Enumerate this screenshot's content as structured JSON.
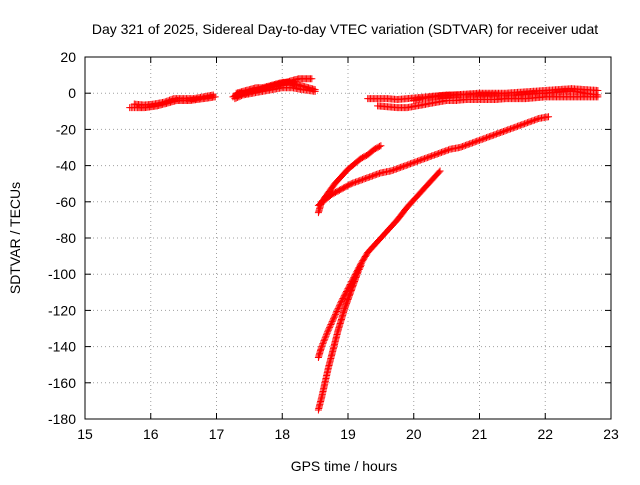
{
  "chart_data": {
    "type": "scatter",
    "title": "Day 321 of 2025, Sidereal Day-to-day VTEC variation (SDTVAR) for receiver udat",
    "xlabel": "GPS time / hours",
    "ylabel": "SDTVAR / TECUs",
    "xlim": [
      15,
      23
    ],
    "ylim": [
      -180,
      20
    ],
    "x_ticks": [
      15,
      16,
      17,
      18,
      19,
      20,
      21,
      22,
      23
    ],
    "y_ticks": [
      20,
      0,
      -20,
      -40,
      -60,
      -80,
      -100,
      -120,
      -140,
      -160,
      -180
    ],
    "x_tick_labels": [
      "15",
      "16",
      "17",
      "18",
      "19",
      "20",
      "21",
      "22",
      "23"
    ],
    "y_tick_labels": [
      "20",
      "0",
      "-20",
      "-40",
      "-60",
      "-80",
      "-100",
      "-120",
      "-140",
      "-160",
      "-180"
    ],
    "grid": true,
    "legend": "none",
    "marker": "plus",
    "color": "#ff0000",
    "series": [
      {
        "x": [
          15.68,
          15.8,
          15.9,
          16.0,
          16.1,
          16.2,
          16.3,
          16.4,
          16.5,
          16.6,
          16.7,
          16.8,
          16.9,
          16.98
        ],
        "y": [
          -8,
          -8,
          -8,
          -7.5,
          -7,
          -6,
          -5,
          -4,
          -4,
          -4,
          -3.5,
          -3,
          -2.5,
          -2
        ]
      },
      {
        "x": [
          15.75,
          15.9,
          16.05,
          16.2,
          16.35,
          16.5,
          16.65,
          16.8,
          16.95
        ],
        "y": [
          -6,
          -6.5,
          -6,
          -5,
          -3,
          -3,
          -3,
          -2,
          -1
        ]
      },
      {
        "x": [
          17.25,
          17.35,
          17.45,
          17.55,
          17.65,
          17.75,
          17.85,
          17.95,
          18.05,
          18.15,
          18.25,
          18.35,
          18.45
        ],
        "y": [
          -2,
          0,
          0,
          1,
          2,
          3,
          4,
          5,
          6,
          7,
          8,
          8,
          8
        ]
      },
      {
        "x": [
          17.3,
          17.4,
          17.5,
          17.6,
          17.7,
          17.8,
          17.9,
          18.0,
          18.1,
          18.2,
          18.3,
          18.4,
          18.5
        ],
        "y": [
          0,
          1,
          2,
          3,
          3,
          4,
          5,
          6,
          6,
          5,
          4,
          3,
          2
        ]
      },
      {
        "x": [
          17.28,
          17.4,
          17.55,
          17.7,
          17.85,
          18.0,
          18.15,
          18.3,
          18.5
        ],
        "y": [
          -3,
          -1,
          0,
          1,
          2,
          3,
          3,
          2,
          1
        ]
      },
      {
        "x": [
          19.3,
          19.45,
          19.6,
          19.75,
          19.9,
          20.05,
          20.2,
          20.35,
          20.5,
          20.65,
          20.8,
          20.95,
          21.1,
          21.25,
          21.4,
          21.55,
          21.7,
          21.85,
          22.0,
          22.15,
          22.3,
          22.45,
          22.6,
          22.8
        ],
        "y": [
          -3,
          -3,
          -3,
          -3.5,
          -3,
          -2.5,
          -2,
          -1.5,
          -1,
          -1,
          -1,
          -1,
          -1,
          -1,
          -1,
          -1,
          -0.5,
          0,
          0,
          0.5,
          1,
          1,
          0,
          -1
        ]
      },
      {
        "x": [
          19.45,
          19.6,
          19.75,
          19.9,
          20.05,
          20.2,
          20.35,
          20.5,
          20.65,
          20.8,
          20.95,
          21.1,
          21.25,
          21.4,
          21.55,
          21.7,
          21.85,
          22.0,
          22.15,
          22.3,
          22.45,
          22.6,
          22.8
        ],
        "y": [
          -7,
          -7.5,
          -8,
          -8,
          -7,
          -6,
          -5,
          -4,
          -4,
          -3.5,
          -3.5,
          -3.5,
          -3.5,
          -3,
          -3,
          -3,
          -2.5,
          -2,
          -2,
          -2,
          -2,
          -2,
          -2
        ]
      },
      {
        "x": [
          20.0,
          20.2,
          20.4,
          20.6,
          20.8,
          21.0,
          21.2,
          21.4,
          21.6,
          21.8,
          22.0,
          22.2,
          22.4,
          22.6,
          22.8
        ],
        "y": [
          -4,
          -2.5,
          -1.5,
          -1,
          -0.5,
          0,
          0,
          0,
          0.5,
          1,
          1.5,
          2,
          2.5,
          2,
          1.5
        ]
      },
      {
        "x": [
          18.55,
          18.6,
          18.7,
          18.8,
          18.9,
          19.0,
          19.1,
          19.2,
          19.3,
          19.4,
          19.5
        ],
        "y": [
          -66,
          -60,
          -55,
          -50,
          -46,
          -42,
          -39,
          -36,
          -34,
          -31,
          -29
        ]
      },
      {
        "x": [
          18.55,
          18.65,
          18.75,
          18.85,
          18.95,
          19.05,
          19.2,
          19.35,
          19.5,
          19.65,
          19.8,
          19.95,
          20.1,
          20.25,
          20.4,
          20.55,
          20.7,
          20.85,
          21.0,
          21.15,
          21.3,
          21.45,
          21.6,
          21.75,
          21.9,
          22.05
        ],
        "y": [
          -62,
          -59,
          -56,
          -54,
          -52,
          -50,
          -48,
          -46,
          -44,
          -43,
          -41,
          -39,
          -37,
          -35,
          -33,
          -31,
          -30,
          -28,
          -26,
          -24,
          -22,
          -20,
          -18,
          -16,
          -14,
          -13
        ]
      },
      {
        "x": [
          18.55,
          18.6,
          18.7,
          18.8,
          18.9,
          19.0,
          19.1,
          19.2,
          19.3,
          19.45,
          19.6,
          19.75,
          19.9,
          20.05,
          20.2,
          20.4
        ],
        "y": [
          -146,
          -140,
          -131,
          -123,
          -115,
          -108,
          -101,
          -94,
          -88,
          -82,
          -76,
          -70,
          -63,
          -57,
          -51,
          -43
        ]
      },
      {
        "x": [
          18.55,
          18.6,
          18.65,
          18.7,
          18.75,
          18.8,
          18.85,
          18.9,
          18.95,
          19.0,
          19.05,
          19.1,
          19.15,
          19.2
        ],
        "y": [
          -175,
          -168,
          -160,
          -152,
          -145,
          -138,
          -131,
          -125,
          -119,
          -114,
          -109,
          -104,
          -99,
          -95
        ]
      }
    ]
  }
}
